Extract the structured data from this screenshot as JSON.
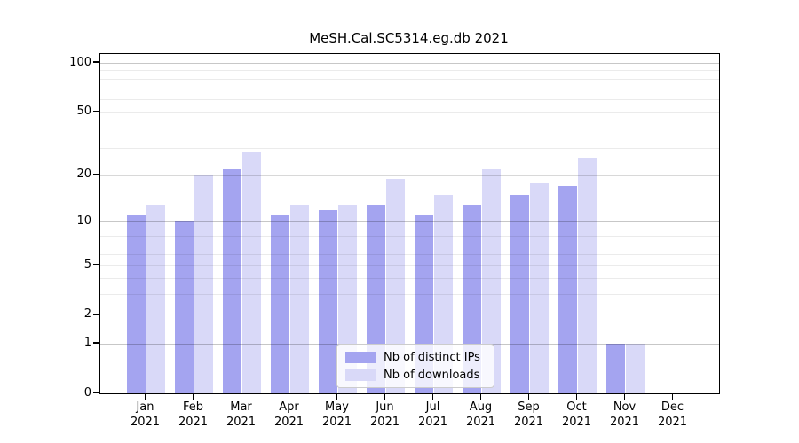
{
  "chart_data": {
    "type": "bar",
    "title": "MeSH.Cal.SC5314.eg.db 2021",
    "year_label": "2021",
    "categories": [
      "Jan",
      "Feb",
      "Mar",
      "Apr",
      "May",
      "Jun",
      "Jul",
      "Aug",
      "Sep",
      "Oct",
      "Nov",
      "Dec"
    ],
    "series": [
      {
        "name": "Nb of distinct IPs",
        "color": "#a4a4f0",
        "values": [
          11,
          10,
          22,
          11,
          12,
          13,
          11,
          13,
          15,
          17,
          1,
          0
        ]
      },
      {
        "name": "Nb of downloads",
        "color": "#d9d9f8",
        "values": [
          13,
          20,
          28,
          13,
          13,
          19,
          15,
          22,
          18,
          26,
          1,
          0
        ]
      }
    ],
    "xlabel": "",
    "ylabel": "",
    "yscale": "log1p",
    "yticks": [
      100,
      50,
      20,
      10,
      5,
      2,
      1,
      0
    ],
    "ylim": [
      0,
      113.4
    ],
    "grid_minor": [
      2,
      3,
      4,
      6,
      7,
      8,
      9,
      20,
      30,
      40,
      60,
      70,
      80,
      90
    ],
    "grid_minor_labeled": [
      2,
      5,
      20,
      50
    ],
    "grid_major": [
      1,
      10,
      100
    ],
    "legend_position": "lower-center",
    "legend_entries": [
      "Nb of distinct IPs",
      "Nb of downloads"
    ]
  }
}
